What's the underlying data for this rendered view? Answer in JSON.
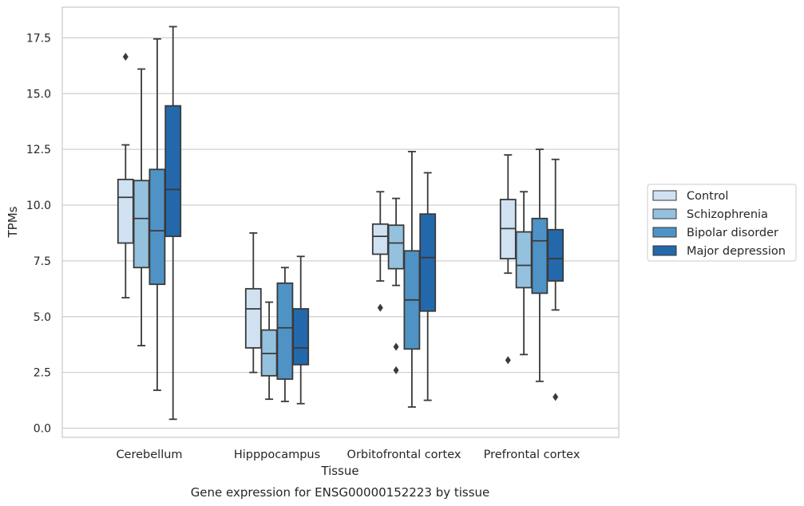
{
  "colors": {
    "Control": "#d0e2f2",
    "Schizophrenia": "#94c1de",
    "Bipolar disorder": "#4f93c6",
    "Major depression": "#2468ac",
    "line": "#3a3a3a",
    "grid": "#cfcfcf",
    "frame": "#c8c8c8"
  },
  "chart_data": {
    "type": "box",
    "title": "",
    "caption": "Gene expression for ENSG00000152223 by tissue",
    "xlabel": "Tissue",
    "ylabel": "TPMs",
    "ylim": [
      -0.4,
      18.9
    ],
    "yticks": [
      0.0,
      2.5,
      5.0,
      7.5,
      10.0,
      12.5,
      15.0,
      17.5
    ],
    "ytick_labels": [
      "0.0",
      "2.5",
      "5.0",
      "7.5",
      "10.0",
      "12.5",
      "15.0",
      "17.5"
    ],
    "grid": true,
    "legend_position": "right",
    "categories": [
      "Cerebellum",
      "Hipppocampus",
      "Orbitofrontal cortex",
      "Prefrontal cortex"
    ],
    "series": [
      {
        "name": "Control",
        "boxes": [
          {
            "whislo": 5.85,
            "q1": 8.3,
            "med": 10.35,
            "q3": 11.15,
            "whishi": 12.7,
            "fliers": [
              16.65
            ]
          },
          {
            "whislo": 2.5,
            "q1": 3.6,
            "med": 5.35,
            "q3": 6.25,
            "whishi": 8.75,
            "fliers": []
          },
          {
            "whislo": 6.6,
            "q1": 7.8,
            "med": 8.6,
            "q3": 9.15,
            "whishi": 10.6,
            "fliers": [
              5.4
            ]
          },
          {
            "whislo": 6.95,
            "q1": 7.6,
            "med": 8.95,
            "q3": 10.25,
            "whishi": 12.25,
            "fliers": [
              3.05
            ]
          }
        ]
      },
      {
        "name": "Schizophrenia",
        "boxes": [
          {
            "whislo": 3.7,
            "q1": 7.2,
            "med": 9.4,
            "q3": 11.1,
            "whishi": 16.1,
            "fliers": []
          },
          {
            "whislo": 1.3,
            "q1": 2.35,
            "med": 3.35,
            "q3": 4.4,
            "whishi": 5.65,
            "fliers": []
          },
          {
            "whislo": 6.4,
            "q1": 7.15,
            "med": 8.3,
            "q3": 9.1,
            "whishi": 10.3,
            "fliers": [
              3.65,
              2.6
            ]
          },
          {
            "whislo": 3.3,
            "q1": 6.3,
            "med": 7.3,
            "q3": 8.8,
            "whishi": 10.6,
            "fliers": []
          }
        ]
      },
      {
        "name": "Bipolar disorder",
        "boxes": [
          {
            "whislo": 1.7,
            "q1": 6.45,
            "med": 8.85,
            "q3": 11.6,
            "whishi": 17.45,
            "fliers": []
          },
          {
            "whislo": 1.2,
            "q1": 2.2,
            "med": 4.5,
            "q3": 6.5,
            "whishi": 7.2,
            "fliers": []
          },
          {
            "whislo": 0.95,
            "q1": 3.55,
            "med": 5.75,
            "q3": 7.95,
            "whishi": 12.4,
            "fliers": []
          },
          {
            "whislo": 2.1,
            "q1": 6.05,
            "med": 8.4,
            "q3": 9.4,
            "whishi": 12.5,
            "fliers": []
          }
        ]
      },
      {
        "name": "Major depression",
        "boxes": [
          {
            "whislo": 0.4,
            "q1": 8.6,
            "med": 10.7,
            "q3": 14.45,
            "whishi": 18.0,
            "fliers": []
          },
          {
            "whislo": 1.1,
            "q1": 2.85,
            "med": 3.6,
            "q3": 5.35,
            "whishi": 7.7,
            "fliers": []
          },
          {
            "whislo": 1.25,
            "q1": 5.25,
            "med": 7.65,
            "q3": 9.6,
            "whishi": 11.45,
            "fliers": []
          },
          {
            "whislo": 5.3,
            "q1": 6.6,
            "med": 7.6,
            "q3": 8.9,
            "whishi": 12.05,
            "fliers": [
              1.4
            ]
          }
        ]
      }
    ]
  }
}
